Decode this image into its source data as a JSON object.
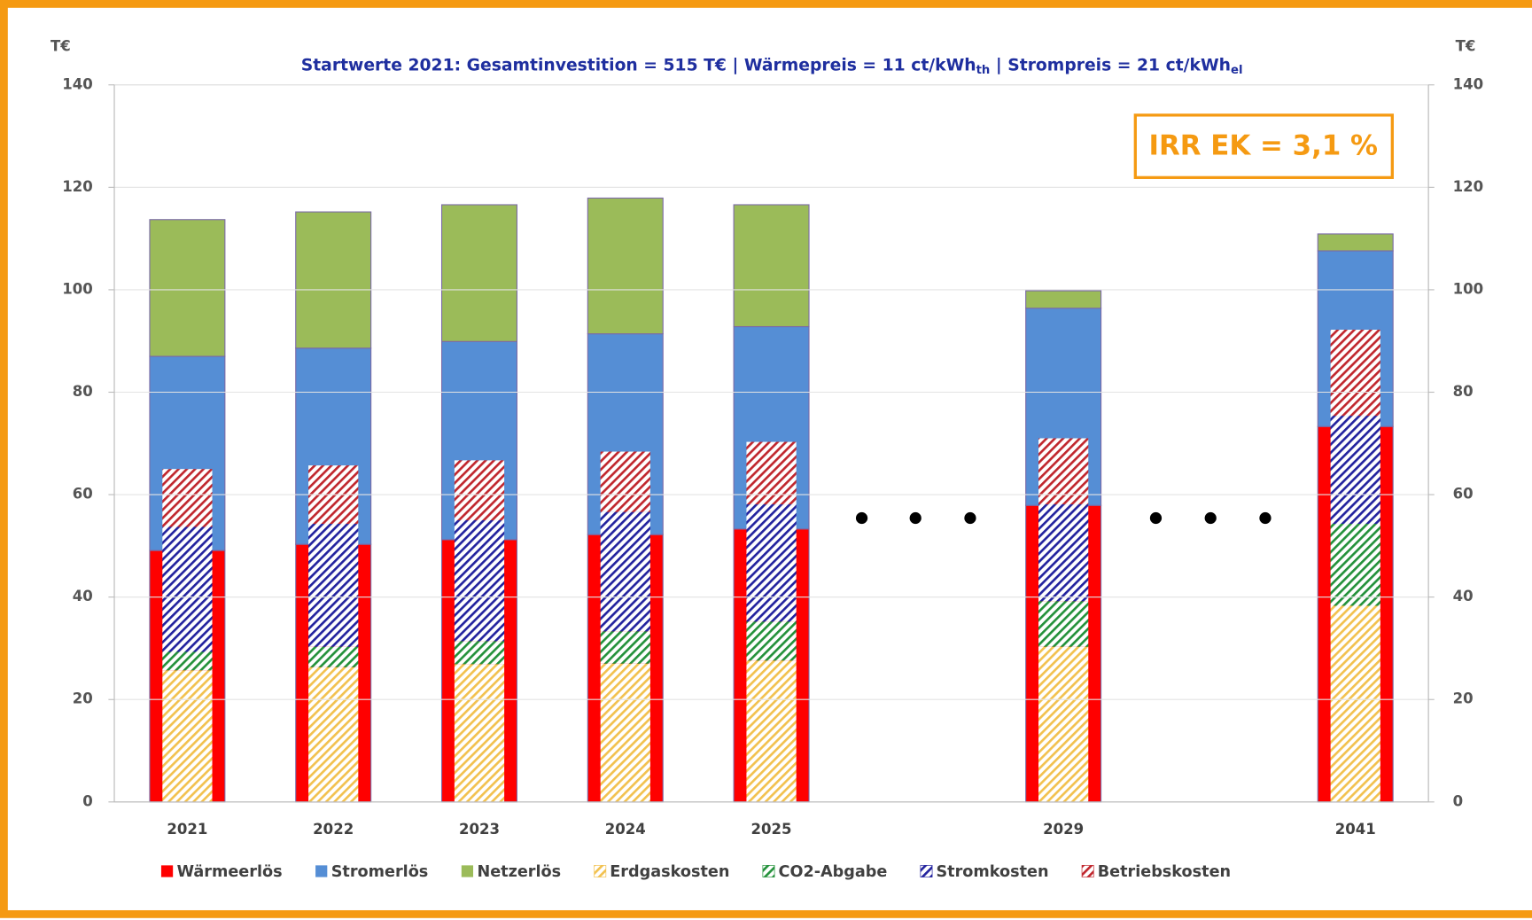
{
  "chart_data": {
    "type": "bar",
    "title": [
      "Startwerte 2021: Gesamtinvestition = 515 T€  |  Wärmepreis  = 11 ct/kWh",
      "th",
      "  |  Strompreis = 21 ct/kWh",
      "el"
    ],
    "y_label": "T€",
    "y2_label": "T€",
    "annotation": "IRR EK = 3,1 %",
    "categories": [
      "2021",
      "2022",
      "2023",
      "2024",
      "2025",
      null,
      "2029",
      null,
      "2041"
    ],
    "ylim": [
      0,
      140
    ],
    "yticks": [
      0,
      20,
      40,
      60,
      80,
      100,
      120,
      140
    ],
    "y2lim": [
      0,
      140
    ],
    "y2ticks": [
      0,
      20,
      40,
      60,
      80,
      100,
      120,
      140
    ],
    "grid": true,
    "legend": "bottom",
    "series": [
      {
        "name": "Wärmeerlös",
        "color": "#ff0000",
        "hatch": false,
        "values": [
          49.1,
          50.3,
          51.2,
          52.2,
          53.3,
          null,
          57.9,
          null,
          73.3
        ]
      },
      {
        "name": "Stromerlös",
        "color": "#558ed5",
        "hatch": false,
        "values": [
          37.9,
          38.3,
          38.7,
          39.2,
          39.5,
          null,
          38.5,
          null,
          34.3
        ]
      },
      {
        "name": "Netzerlös",
        "color": "#9bbb59",
        "hatch": false,
        "values": [
          26.7,
          26.6,
          26.7,
          26.5,
          23.8,
          null,
          3.4,
          null,
          3.3
        ]
      },
      {
        "name": "Erdgaskosten",
        "color": "#f2c14e",
        "hatch": true,
        "values": [
          25.7,
          26.3,
          26.9,
          27.0,
          27.6,
          null,
          30.3,
          null,
          38.3
        ]
      },
      {
        "name": "CO2-Abgabe",
        "color": "#23913a",
        "hatch": true,
        "values": [
          3.6,
          4.0,
          4.5,
          6.3,
          7.6,
          null,
          8.9,
          null,
          16.0
        ]
      },
      {
        "name": "Stromkosten",
        "color": "#22229e",
        "hatch": true,
        "values": [
          24.4,
          24.0,
          23.6,
          23.3,
          22.9,
          null,
          18.9,
          null,
          21.1
        ]
      },
      {
        "name": "Betriebskosten",
        "color": "#c0262d",
        "hatch": true,
        "values": [
          11.3,
          11.4,
          11.7,
          11.8,
          12.2,
          null,
          12.9,
          null,
          16.8
        ]
      }
    ]
  }
}
